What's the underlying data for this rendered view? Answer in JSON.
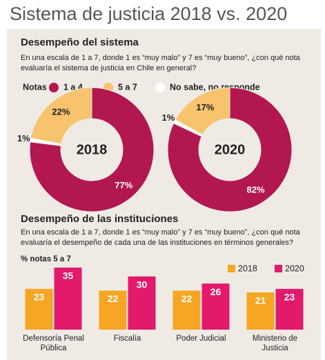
{
  "title": "Sistema de justicia 2018 vs. 2020",
  "sections": [
    {
      "heading": "Desempeño del sistema",
      "question": "En una escala de 1 a 7, donde 1 es “muy malo” y 7 es “muy bueno”, ¿con qué nota evaluaría el sistema de justicia en Chile en general?"
    },
    {
      "heading": "Desempeño de las instituciones",
      "question": "En una escala de 1 a 7, donde 1 es “muy malo” y 7 es “muy bueno”, ¿con qué nota evaluaría el desempeño de cada una de las instituciones en términos generales?"
    }
  ],
  "chart_data": [
    {
      "type": "pie",
      "donut": true,
      "legend_title": "Notas",
      "categories": [
        "1 a 4",
        "5 a 7",
        "No sabe, no responde"
      ],
      "colors": [
        "#b3174f",
        "#f7c36c",
        "#ffffff"
      ],
      "center_label": "2018",
      "values": [
        77,
        22,
        1
      ],
      "value_labels": [
        "77%",
        "22%",
        "1%"
      ]
    },
    {
      "type": "pie",
      "donut": true,
      "center_label": "2020",
      "values": [
        82,
        17,
        1
      ],
      "value_labels": [
        "82%",
        "17%",
        "1%"
      ]
    },
    {
      "type": "bar",
      "y_label": "% notas 5 a 7",
      "categories": [
        "Defensoría Penal Pública",
        "Fiscalía",
        "Poder Judicial",
        "Ministerio de Justicia"
      ],
      "series": [
        {
          "name": "2018",
          "color": "#f6a623",
          "values": [
            23,
            22,
            22,
            21
          ]
        },
        {
          "name": "2020",
          "color": "#e3196c",
          "values": [
            35,
            30,
            26,
            23
          ]
        }
      ],
      "ylim": [
        0,
        35
      ]
    }
  ]
}
